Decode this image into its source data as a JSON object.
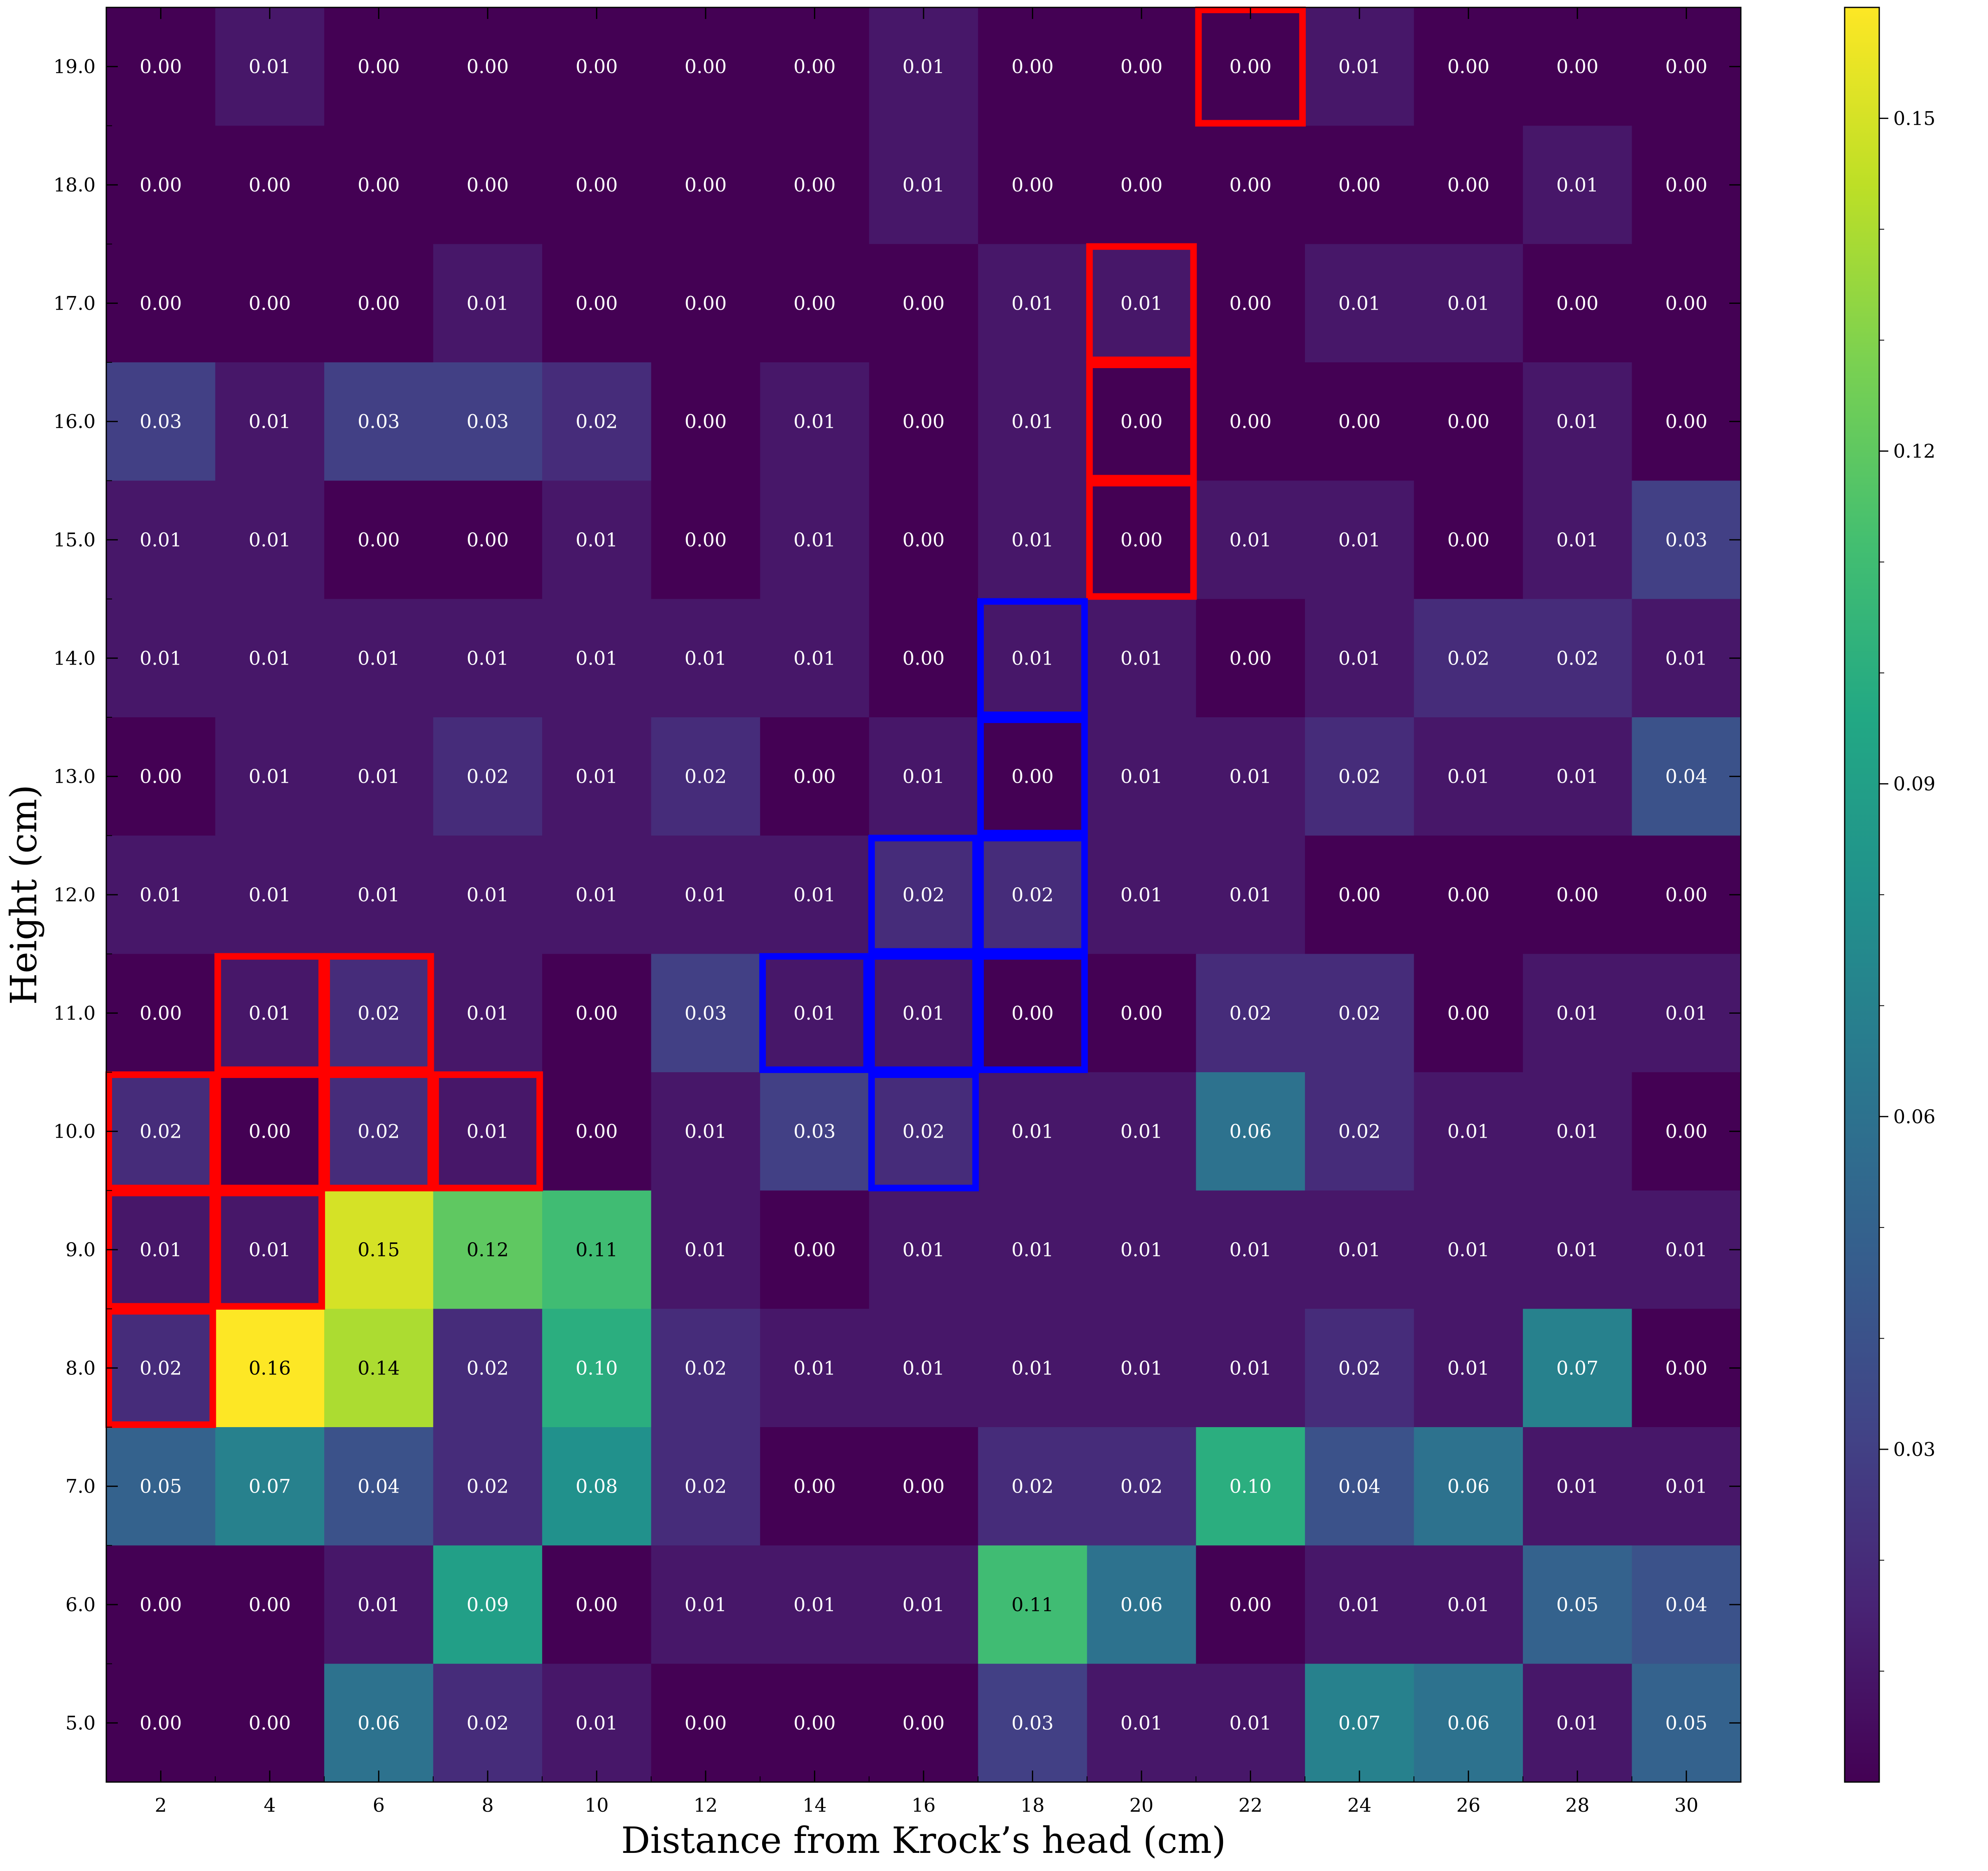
{
  "chart_data": {
    "type": "heatmap",
    "title": "",
    "xlabel": "Distance from Krock’s head (cm)",
    "ylabel": "Height (cm)",
    "x_categories": [
      "2",
      "4",
      "6",
      "8",
      "10",
      "12",
      "14",
      "16",
      "18",
      "20",
      "22",
      "24",
      "26",
      "28",
      "30"
    ],
    "y_categories": [
      "19.0",
      "18.0",
      "17.0",
      "16.0",
      "15.0",
      "14.0",
      "13.0",
      "12.0",
      "11.0",
      "10.0",
      "9.0",
      "8.0",
      "7.0",
      "6.0",
      "5.0"
    ],
    "values": [
      [
        0.0,
        0.01,
        0.0,
        0.0,
        0.0,
        0.0,
        0.0,
        0.01,
        0.0,
        0.0,
        0.0,
        0.01,
        0.0,
        0.0,
        0.0
      ],
      [
        0.0,
        0.0,
        0.0,
        0.0,
        0.0,
        0.0,
        0.0,
        0.01,
        0.0,
        0.0,
        0.0,
        0.0,
        0.0,
        0.01,
        0.0
      ],
      [
        0.0,
        0.0,
        0.0,
        0.01,
        0.0,
        0.0,
        0.0,
        0.0,
        0.01,
        0.01,
        0.0,
        0.01,
        0.01,
        0.0,
        0.0
      ],
      [
        0.03,
        0.01,
        0.03,
        0.03,
        0.02,
        0.0,
        0.01,
        0.0,
        0.01,
        0.0,
        0.0,
        0.0,
        0.0,
        0.01,
        0.0
      ],
      [
        0.01,
        0.01,
        0.0,
        0.0,
        0.01,
        0.0,
        0.01,
        0.0,
        0.01,
        0.0,
        0.01,
        0.01,
        0.0,
        0.01,
        0.03
      ],
      [
        0.01,
        0.01,
        0.01,
        0.01,
        0.01,
        0.01,
        0.01,
        0.0,
        0.01,
        0.01,
        0.0,
        0.01,
        0.02,
        0.02,
        0.01
      ],
      [
        0.0,
        0.01,
        0.01,
        0.02,
        0.01,
        0.02,
        0.0,
        0.01,
        0.0,
        0.01,
        0.01,
        0.02,
        0.01,
        0.01,
        0.04
      ],
      [
        0.01,
        0.01,
        0.01,
        0.01,
        0.01,
        0.01,
        0.01,
        0.02,
        0.02,
        0.01,
        0.01,
        0.0,
        0.0,
        0.0,
        0.0
      ],
      [
        0.0,
        0.01,
        0.02,
        0.01,
        0.0,
        0.03,
        0.01,
        0.01,
        0.0,
        0.0,
        0.02,
        0.02,
        0.0,
        0.01,
        0.01
      ],
      [
        0.02,
        0.0,
        0.02,
        0.01,
        0.0,
        0.01,
        0.03,
        0.02,
        0.01,
        0.01,
        0.06,
        0.02,
        0.01,
        0.01,
        0.0
      ],
      [
        0.01,
        0.01,
        0.15,
        0.12,
        0.11,
        0.01,
        0.0,
        0.01,
        0.01,
        0.01,
        0.01,
        0.01,
        0.01,
        0.01,
        0.01
      ],
      [
        0.02,
        0.16,
        0.14,
        0.02,
        0.1,
        0.02,
        0.01,
        0.01,
        0.01,
        0.01,
        0.01,
        0.02,
        0.01,
        0.07,
        0.0
      ],
      [
        0.05,
        0.07,
        0.04,
        0.02,
        0.08,
        0.02,
        0.0,
        0.0,
        0.02,
        0.02,
        0.1,
        0.04,
        0.06,
        0.01,
        0.01
      ],
      [
        0.0,
        0.0,
        0.01,
        0.09,
        0.0,
        0.01,
        0.01,
        0.01,
        0.11,
        0.06,
        0.0,
        0.01,
        0.01,
        0.05,
        0.04
      ],
      [
        0.0,
        0.0,
        0.06,
        0.02,
        0.01,
        0.0,
        0.0,
        0.0,
        0.03,
        0.01,
        0.01,
        0.07,
        0.06,
        0.01,
        0.05
      ]
    ],
    "colormap": "viridis",
    "colorbar": {
      "range": [
        0.0,
        0.16
      ],
      "ticks": [
        0.03,
        0.06,
        0.09,
        0.12,
        0.15
      ],
      "tick_labels": [
        "0.03",
        "0.06",
        "0.09",
        "0.12",
        "0.15"
      ]
    },
    "highlight_red_cells": [
      [
        "22",
        "19.0"
      ],
      [
        "20",
        "17.0"
      ],
      [
        "20",
        "16.0"
      ],
      [
        "20",
        "15.0"
      ],
      [
        "4",
        "11.0"
      ],
      [
        "6",
        "11.0"
      ],
      [
        "2",
        "10.0"
      ],
      [
        "4",
        "10.0"
      ],
      [
        "6",
        "10.0"
      ],
      [
        "8",
        "10.0"
      ],
      [
        "2",
        "9.0"
      ],
      [
        "4",
        "9.0"
      ],
      [
        "2",
        "8.0"
      ]
    ],
    "highlight_blue_cells": [
      [
        "18",
        "14.0"
      ],
      [
        "18",
        "13.0"
      ],
      [
        "16",
        "12.0"
      ],
      [
        "18",
        "12.0"
      ],
      [
        "14",
        "11.0"
      ],
      [
        "16",
        "11.0"
      ],
      [
        "18",
        "11.0"
      ],
      [
        "16",
        "10.0"
      ]
    ],
    "highlight_colors": {
      "red": "#ff0000",
      "blue": "#0000ff"
    },
    "cell_text_dark_threshold": 0.1,
    "cell_text_colors": {
      "light": "#ffffff",
      "dark": "#000000"
    }
  }
}
